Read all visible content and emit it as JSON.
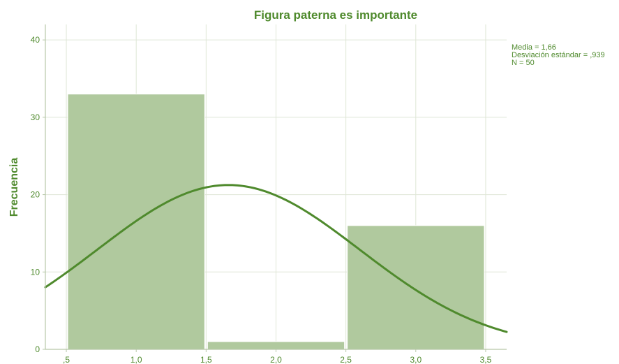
{
  "chart_data": {
    "type": "bar",
    "title": "Figura paterna es importante",
    "ylabel": "Frecuencia",
    "xlabel": "",
    "xlim": [
      0.35,
      3.65
    ],
    "ylim": [
      0,
      42
    ],
    "x_ticks": [
      {
        "value": 0.5,
        "label": ",5"
      },
      {
        "value": 1.0,
        "label": "1,0"
      },
      {
        "value": 1.5,
        "label": "1,5"
      },
      {
        "value": 2.0,
        "label": "2,0"
      },
      {
        "value": 2.5,
        "label": "2,5"
      },
      {
        "value": 3.0,
        "label": "3,0"
      },
      {
        "value": 3.5,
        "label": "3,5"
      }
    ],
    "y_ticks": [
      {
        "value": 0,
        "label": "0"
      },
      {
        "value": 10,
        "label": "10"
      },
      {
        "value": 20,
        "label": "20"
      },
      {
        "value": 30,
        "label": "30"
      },
      {
        "value": 40,
        "label": "40"
      }
    ],
    "bars": [
      {
        "x_start": 0.5,
        "x_end": 1.5,
        "value": 33
      },
      {
        "x_start": 1.5,
        "x_end": 2.5,
        "value": 1
      },
      {
        "x_start": 2.5,
        "x_end": 3.5,
        "value": 16
      }
    ],
    "normal_curve": {
      "mean": 1.66,
      "sd": 0.939,
      "n": 50,
      "bin_width": 1
    },
    "stats": {
      "mean_label": "Media = 1,66",
      "sd_label": "Desviación estándar = ,939",
      "n_label": "N = 50"
    },
    "grid": true,
    "colors": {
      "bar_fill": "#b0c99e",
      "bar_stroke": "#ffffff",
      "curve": "#4f8a2d",
      "text": "#4f8a2d",
      "grid": "#dfe6d6",
      "axis": "#b7c7a8"
    }
  }
}
